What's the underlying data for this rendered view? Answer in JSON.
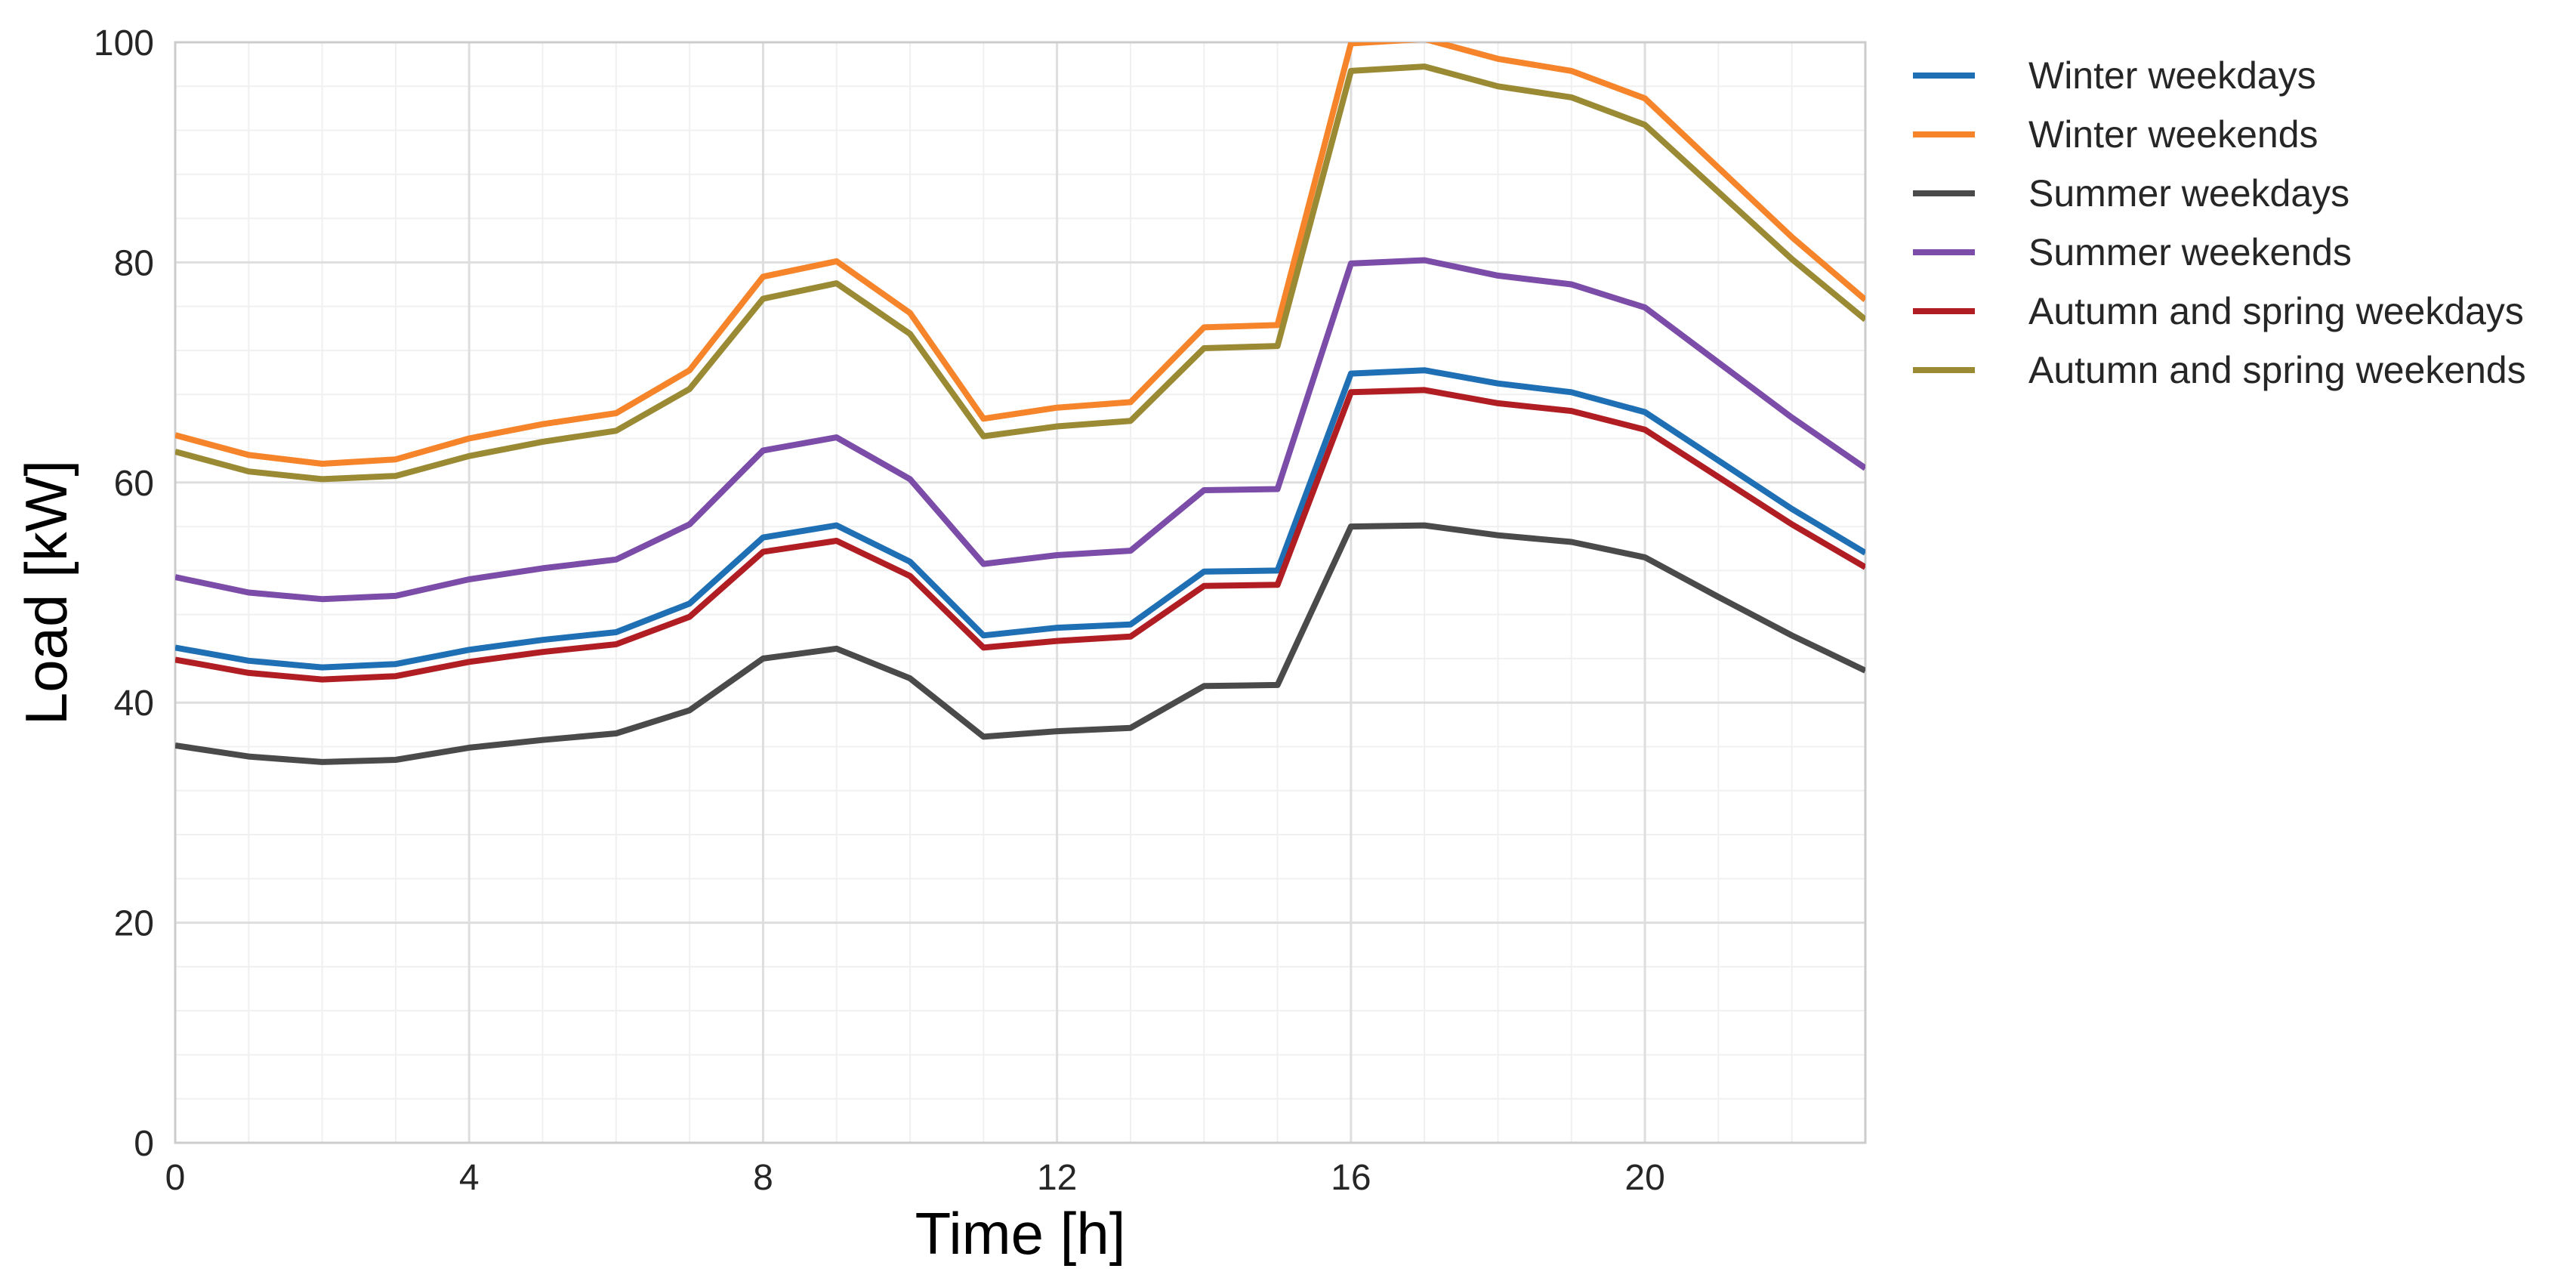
{
  "chart_data": {
    "type": "line",
    "title": "",
    "xlabel": "Time [h]",
    "ylabel": "Load [kW]",
    "xlim": [
      0,
      23
    ],
    "ylim": [
      0,
      100
    ],
    "grid": true,
    "minor_grid": true,
    "legend_position": "outside-right-top",
    "x": [
      0,
      1,
      2,
      3,
      4,
      5,
      6,
      7,
      8,
      9,
      10,
      11,
      12,
      13,
      14,
      15,
      16,
      17,
      18,
      19,
      20,
      21,
      22,
      23
    ],
    "x_ticks": [
      {
        "value": 0,
        "label": "0"
      },
      {
        "value": 4,
        "label": "4"
      },
      {
        "value": 8,
        "label": "8"
      },
      {
        "value": 12,
        "label": "12"
      },
      {
        "value": 16,
        "label": "16"
      },
      {
        "value": 20,
        "label": "20"
      }
    ],
    "y_ticks": [
      {
        "value": 0,
        "label": "0"
      },
      {
        "value": 20,
        "label": "20"
      },
      {
        "value": 40,
        "label": "40"
      },
      {
        "value": 60,
        "label": "60"
      },
      {
        "value": 80,
        "label": "80"
      },
      {
        "value": 100,
        "label": "100"
      }
    ],
    "series": [
      {
        "name": "Winter weekdays",
        "color": "#1f6fb5",
        "values": [
          45.0,
          43.8,
          43.2,
          43.5,
          44.8,
          45.7,
          46.4,
          49.0,
          55.0,
          56.1,
          52.8,
          46.1,
          46.8,
          47.1,
          51.9,
          52.0,
          69.9,
          70.2,
          69.0,
          68.2,
          66.4,
          62.0,
          57.6,
          53.6
        ]
      },
      {
        "name": "Winter weekends",
        "color": "#f5842a",
        "values": [
          64.3,
          62.5,
          61.7,
          62.1,
          64.0,
          65.3,
          66.3,
          70.2,
          78.7,
          80.1,
          75.4,
          65.8,
          66.8,
          67.3,
          74.1,
          74.3,
          99.9,
          100.3,
          98.5,
          97.4,
          94.9,
          88.6,
          82.3,
          76.6
        ]
      },
      {
        "name": "Summer weekdays",
        "color": "#4a4a4a",
        "values": [
          36.1,
          35.1,
          34.6,
          34.8,
          35.9,
          36.6,
          37.2,
          39.3,
          44.0,
          44.9,
          42.2,
          36.9,
          37.4,
          37.7,
          41.5,
          41.6,
          56.0,
          56.1,
          55.2,
          54.6,
          53.2,
          49.6,
          46.1,
          42.9
        ]
      },
      {
        "name": "Summer weekends",
        "color": "#7b4ca8",
        "values": [
          51.4,
          50.0,
          49.4,
          49.7,
          51.2,
          52.2,
          53.0,
          56.2,
          62.9,
          64.1,
          60.3,
          52.6,
          53.4,
          53.8,
          59.3,
          59.4,
          79.9,
          80.2,
          78.8,
          78.0,
          75.9,
          70.9,
          65.9,
          61.3
        ]
      },
      {
        "name": "Autumn and spring weekdays",
        "color": "#b01e23",
        "values": [
          43.9,
          42.7,
          42.1,
          42.4,
          43.7,
          44.6,
          45.3,
          47.8,
          53.7,
          54.7,
          51.5,
          45.0,
          45.6,
          46.0,
          50.6,
          50.7,
          68.2,
          68.4,
          67.2,
          66.5,
          64.8,
          60.5,
          56.2,
          52.3
        ]
      },
      {
        "name": "Autumn and spring weekends",
        "color": "#9a8a34",
        "values": [
          62.8,
          61.0,
          60.3,
          60.6,
          62.4,
          63.7,
          64.7,
          68.5,
          76.7,
          78.1,
          73.5,
          64.2,
          65.1,
          65.6,
          72.2,
          72.4,
          97.4,
          97.8,
          96.0,
          95.0,
          92.5,
          86.4,
          80.3,
          74.8
        ]
      }
    ]
  }
}
